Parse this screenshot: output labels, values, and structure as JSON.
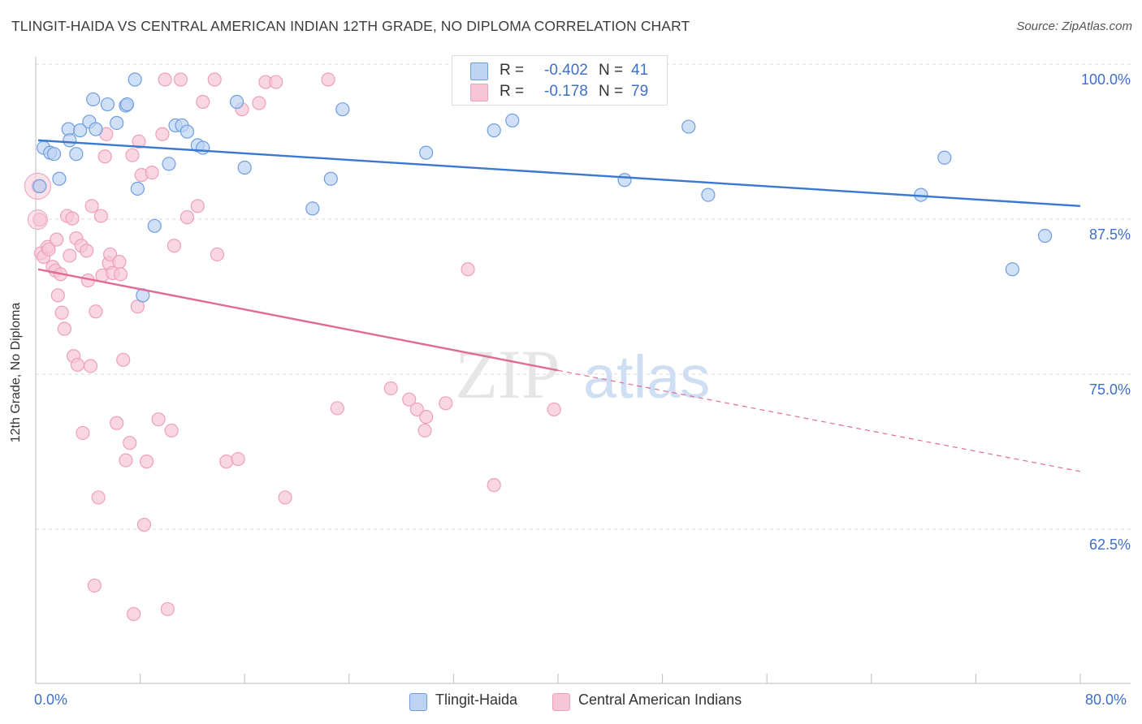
{
  "title": "TLINGIT-HAIDA VS CENTRAL AMERICAN INDIAN 12TH GRADE, NO DIPLOMA CORRELATION CHART",
  "source": "Source: ZipAtlas.com",
  "watermark": {
    "zip": "ZIP",
    "atlas": "atlas"
  },
  "colors": {
    "blue": "#3b78d0",
    "blue_fill": "#bcd3f2",
    "blue_stroke": "#6f9ee0",
    "pink": "#e06b97",
    "pink_fill": "#f7c6d6",
    "pink_stroke": "#ee9fba",
    "tick_label": "#3f6fc9",
    "grid": "#d9d9d9"
  },
  "legend_top": {
    "rows": [
      {
        "r_label": "R =",
        "r_value": "-0.402",
        "n_label": "N =",
        "n_value": "41"
      },
      {
        "r_label": "R =",
        "r_value": "-0.178",
        "n_label": "N =",
        "n_value": "79"
      }
    ]
  },
  "legend_bottom": [
    "Tlingit-Haida",
    "Central American Indians"
  ],
  "chart_data": {
    "type": "scatter",
    "title": "TLINGIT-HAIDA VS CENTRAL AMERICAN INDIAN 12TH GRADE, NO DIPLOMA CORRELATION CHART",
    "xlabel": "",
    "ylabel": "12th Grade, No Diploma",
    "xlim": [
      0,
      80
    ],
    "ylim": [
      50.5,
      101.5
    ],
    "x_tick_labels": [
      "0.0%",
      "80.0%"
    ],
    "y_ticks": [
      62.5,
      75.0,
      87.5,
      100.0
    ],
    "y_tick_labels": [
      "62.5%",
      "75.0%",
      "87.5%",
      "100.0%"
    ],
    "grid": true,
    "legend_placement": "bottom",
    "series": [
      {
        "name": "Tlingit-Haida",
        "color": "#3b78d0",
        "trend": {
          "x": [
            0,
            80
          ],
          "y": [
            95.1,
            89.8
          ],
          "dashed_from": null
        },
        "points": [
          [
            0.6,
            94.5
          ],
          [
            1.1,
            94.1
          ],
          [
            1.4,
            94.0
          ],
          [
            1.8,
            92.0
          ],
          [
            2.5,
            96.0
          ],
          [
            2.6,
            95.1
          ],
          [
            3.1,
            94.0
          ],
          [
            3.4,
            95.9
          ],
          [
            4.1,
            96.6
          ],
          [
            4.6,
            96.0
          ],
          [
            4.4,
            98.4
          ],
          [
            5.5,
            98.0
          ],
          [
            6.2,
            96.5
          ],
          [
            6.9,
            97.9
          ],
          [
            7.0,
            98.0
          ],
          [
            7.8,
            91.2
          ],
          [
            7.6,
            100.0
          ],
          [
            8.2,
            82.6
          ],
          [
            9.1,
            88.2
          ],
          [
            10.2,
            93.2
          ],
          [
            10.7,
            96.3
          ],
          [
            11.2,
            96.3
          ],
          [
            11.6,
            95.8
          ],
          [
            12.4,
            94.7
          ],
          [
            12.8,
            94.5
          ],
          [
            15.4,
            98.2
          ],
          [
            16.0,
            92.9
          ],
          [
            21.2,
            89.6
          ],
          [
            22.6,
            92.0
          ],
          [
            23.5,
            97.6
          ],
          [
            29.9,
            94.1
          ],
          [
            35.1,
            95.9
          ],
          [
            36.5,
            96.7
          ],
          [
            45.1,
            91.9
          ],
          [
            50.0,
            96.2
          ],
          [
            51.5,
            90.7
          ],
          [
            67.8,
            90.7
          ],
          [
            69.6,
            93.7
          ],
          [
            74.8,
            84.7
          ],
          [
            77.3,
            87.4
          ],
          [
            0.3,
            91.4
          ]
        ]
      },
      {
        "name": "Central American Indians",
        "color": "#e06b97",
        "trend": {
          "x": [
            0,
            80
          ],
          "y": [
            84.7,
            68.4
          ],
          "dashed_from": 40
        },
        "points": [
          [
            0.2,
            91.4
          ],
          [
            0.3,
            88.7
          ],
          [
            0.4,
            86.0
          ],
          [
            0.6,
            85.7
          ],
          [
            0.9,
            86.5
          ],
          [
            1.0,
            86.3
          ],
          [
            1.3,
            84.9
          ],
          [
            1.5,
            84.6
          ],
          [
            1.6,
            87.1
          ],
          [
            1.7,
            82.6
          ],
          [
            1.9,
            84.3
          ],
          [
            2.0,
            81.2
          ],
          [
            2.2,
            79.9
          ],
          [
            2.4,
            89.0
          ],
          [
            2.6,
            85.8
          ],
          [
            2.8,
            88.8
          ],
          [
            2.9,
            77.7
          ],
          [
            3.1,
            87.2
          ],
          [
            3.2,
            77.0
          ],
          [
            3.5,
            86.6
          ],
          [
            3.6,
            71.5
          ],
          [
            3.9,
            86.2
          ],
          [
            4.0,
            83.8
          ],
          [
            4.2,
            76.9
          ],
          [
            4.3,
            89.8
          ],
          [
            4.5,
            59.2
          ],
          [
            4.6,
            81.3
          ],
          [
            4.8,
            66.3
          ],
          [
            5.0,
            89.0
          ],
          [
            5.1,
            84.2
          ],
          [
            5.3,
            93.8
          ],
          [
            5.4,
            95.6
          ],
          [
            5.6,
            85.2
          ],
          [
            5.7,
            85.9
          ],
          [
            5.9,
            84.4
          ],
          [
            6.2,
            72.3
          ],
          [
            6.4,
            85.3
          ],
          [
            6.5,
            84.3
          ],
          [
            6.7,
            77.4
          ],
          [
            6.9,
            69.3
          ],
          [
            7.2,
            70.7
          ],
          [
            7.4,
            93.9
          ],
          [
            7.5,
            56.9
          ],
          [
            7.8,
            81.7
          ],
          [
            7.9,
            95.0
          ],
          [
            8.1,
            92.3
          ],
          [
            8.3,
            64.1
          ],
          [
            8.5,
            69.2
          ],
          [
            8.9,
            92.5
          ],
          [
            9.4,
            72.6
          ],
          [
            9.7,
            95.6
          ],
          [
            9.9,
            100.0
          ],
          [
            10.1,
            57.3
          ],
          [
            10.4,
            71.7
          ],
          [
            10.6,
            86.6
          ],
          [
            11.1,
            100.0
          ],
          [
            11.6,
            88.9
          ],
          [
            12.4,
            89.8
          ],
          [
            12.8,
            98.2
          ],
          [
            13.7,
            100.0
          ],
          [
            13.9,
            85.9
          ],
          [
            14.6,
            69.2
          ],
          [
            15.5,
            69.4
          ],
          [
            15.8,
            97.6
          ],
          [
            17.1,
            98.1
          ],
          [
            17.6,
            99.8
          ],
          [
            18.4,
            99.8
          ],
          [
            19.1,
            66.3
          ],
          [
            22.4,
            100.0
          ],
          [
            23.1,
            73.5
          ],
          [
            27.2,
            75.1
          ],
          [
            28.6,
            74.2
          ],
          [
            29.2,
            73.4
          ],
          [
            29.9,
            72.8
          ],
          [
            29.8,
            71.7
          ],
          [
            31.4,
            73.9
          ],
          [
            33.1,
            84.7
          ],
          [
            35.1,
            67.3
          ],
          [
            39.7,
            73.4
          ]
        ]
      }
    ]
  }
}
